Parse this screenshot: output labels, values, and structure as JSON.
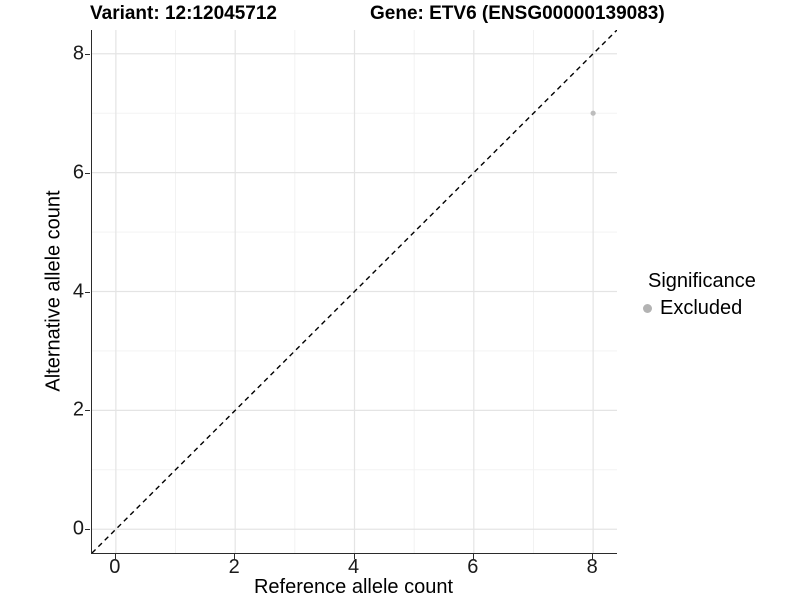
{
  "header": {
    "title_left": "Variant: 12:12045712",
    "title_right": "Gene: ETV6 (ENSG00000139083)"
  },
  "legend": {
    "title": "Significance",
    "items": [
      {
        "label": "Excluded",
        "color": "#b3b3b3"
      }
    ]
  },
  "chart_data": {
    "type": "scatter",
    "title": "Variant: 12:12045712    Gene: ETV6 (ENSG00000139083)",
    "xlabel": "Reference allele count",
    "ylabel": "Alternative allele count",
    "xlim": [
      -0.4,
      8.4
    ],
    "ylim": [
      -0.4,
      8.4
    ],
    "x_major_ticks": [
      0,
      2,
      4,
      6,
      8
    ],
    "y_major_ticks": [
      0,
      2,
      4,
      6,
      8
    ],
    "x_minor_ticks": [
      1,
      3,
      5,
      7
    ],
    "y_minor_ticks": [
      1,
      3,
      5,
      7
    ],
    "grid": true,
    "legend_position": "right",
    "series": [
      {
        "name": "Excluded",
        "color": "#bdbdbd",
        "points": [
          {
            "x": 8,
            "y": 7
          }
        ]
      }
    ],
    "reference_line": {
      "slope": 1,
      "intercept": 0,
      "style": "dashed",
      "color": "#000000"
    },
    "colors": {
      "grid_major": "#e4e4e4",
      "grid_minor": "#f1f1f1",
      "axis_line": "#2b2b2b",
      "point": "#bdbdbd"
    }
  }
}
